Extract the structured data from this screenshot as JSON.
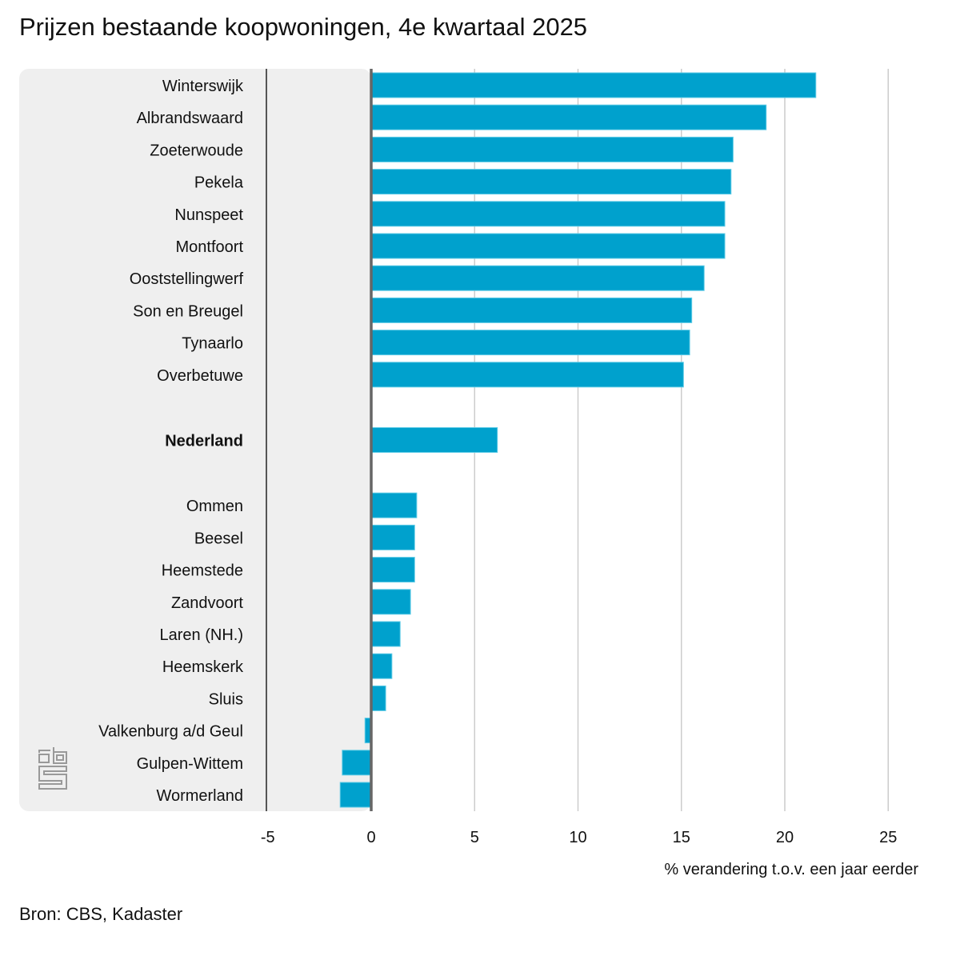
{
  "title": "Prijzen bestaande koopwoningen, 4e kwartaal 2025",
  "source": "Bron: CBS, Kadaster",
  "logo": "cbs-logo-icon",
  "chart_data": {
    "type": "bar",
    "orientation": "horizontal",
    "title": "Prijzen bestaande koopwoningen, 4e kwartaal 2025",
    "xlabel": "% verandering t.o.v. een jaar eerder",
    "ylabel": "",
    "xlim": [
      -5,
      25
    ],
    "xticks": [
      "-5",
      "0",
      "5",
      "10",
      "15",
      "20",
      "25"
    ],
    "grid": true,
    "bar_color": "#00a1cd",
    "groups": [
      {
        "categories": [
          "Winterswijk",
          "Albrandswaard",
          "Zoeterwoude",
          "Pekela",
          "Nunspeet",
          "Montfoort",
          "Ooststellingwerf",
          "Son en Breugel",
          "Tynaarlo",
          "Overbetuwe"
        ],
        "values": [
          21.5,
          19.1,
          17.5,
          17.4,
          17.1,
          17.1,
          16.1,
          15.5,
          15.4,
          15.1
        ]
      },
      {
        "categories": [
          "Nederland"
        ],
        "values": [
          6.1
        ],
        "bold": true
      },
      {
        "categories": [
          "Ommen",
          "Beesel",
          "Heemstede",
          "Zandvoort",
          "Laren (NH.)",
          "Heemskerk",
          "Sluis",
          "Valkenburg a/d Geul",
          "Gulpen-Wittem",
          "Wormerland"
        ],
        "values": [
          2.2,
          2.1,
          2.1,
          1.9,
          1.4,
          1.0,
          0.7,
          -0.3,
          -1.4,
          -1.5
        ]
      }
    ]
  }
}
